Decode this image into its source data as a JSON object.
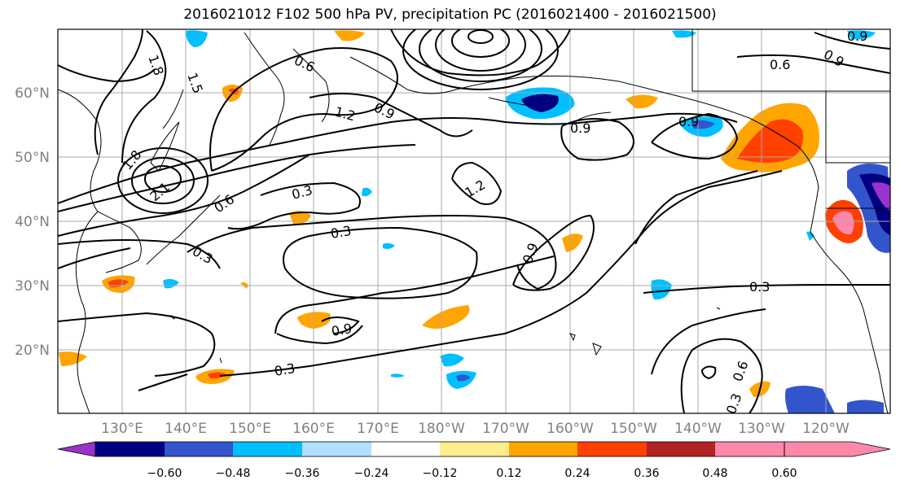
{
  "title": "2016021012 F102 500 hPa PV, precipitation PC (2016021400 - 2016021500)",
  "lat_labels": [
    "60°N",
    "50°N",
    "40°N",
    "30°N",
    "20°N"
  ],
  "lon_labels": [
    "130°E",
    "140°E",
    "150°E",
    "160°E",
    "170°E",
    "180°W",
    "170°W",
    "160°W",
    "150°W",
    "140°W",
    "130°W",
    "120°W"
  ],
  "contour_labels": [
    "1.8",
    "1.5",
    "0.6",
    "0.9",
    "1.2",
    "0.9",
    "0.9",
    "0.6",
    "0.9",
    "0.9",
    "1.8",
    "2.1",
    "0.6",
    "0.3",
    "0.3",
    "1.2",
    "0.3",
    "0.9",
    "0.9",
    "0.3",
    "0.3",
    "0.6",
    "0.3"
  ],
  "colorbar": {
    "tick_labels": [
      "−0.60",
      "−0.48",
      "−0.36",
      "−0.24",
      "−0.12",
      "0.12",
      "0.24",
      "0.36",
      "0.48",
      "0.60"
    ],
    "colors": [
      "#9933cc",
      "#000080",
      "#3355cc",
      "#00bfff",
      "#b0e0ff",
      "#ffffff",
      "#ffec8b",
      "#ffa500",
      "#ff4000",
      "#b22222",
      "#ff88aa"
    ]
  }
}
